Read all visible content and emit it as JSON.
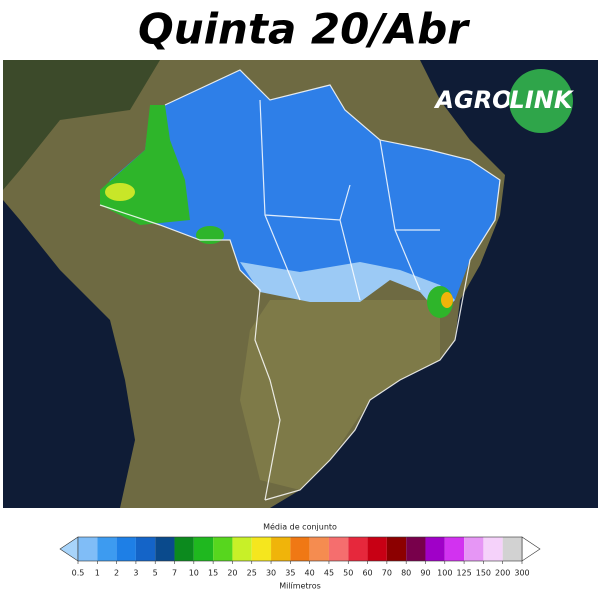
{
  "header": {
    "title": "Quinta 20/Abr"
  },
  "logo": {
    "left": "AGRO",
    "right": "LINK"
  },
  "legend": {
    "title": "Média de conjunto",
    "unit": "Milímetros",
    "ticks": [
      0.5,
      1,
      2,
      3,
      5,
      7,
      10,
      15,
      20,
      25,
      30,
      35,
      40,
      45,
      50,
      60,
      70,
      80,
      90,
      100,
      125,
      150,
      200,
      300
    ],
    "under_color": "#a8d4fa",
    "over_color": "#ffffff",
    "colors": [
      "#80bdf7",
      "#3d9bf0",
      "#1e7fe6",
      "#1464c8",
      "#0a4a8c",
      "#0c8a1e",
      "#1fb81f",
      "#57d61e",
      "#c8f028",
      "#f5e61e",
      "#f0b40a",
      "#f07814",
      "#f58c50",
      "#f56e6e",
      "#e6283c",
      "#c80014",
      "#8c0000",
      "#78004b",
      "#a000c8",
      "#d232f0",
      "#e696f5",
      "#f5d2fa",
      "#d2d2d2",
      "#a0a0a0"
    ]
  }
}
